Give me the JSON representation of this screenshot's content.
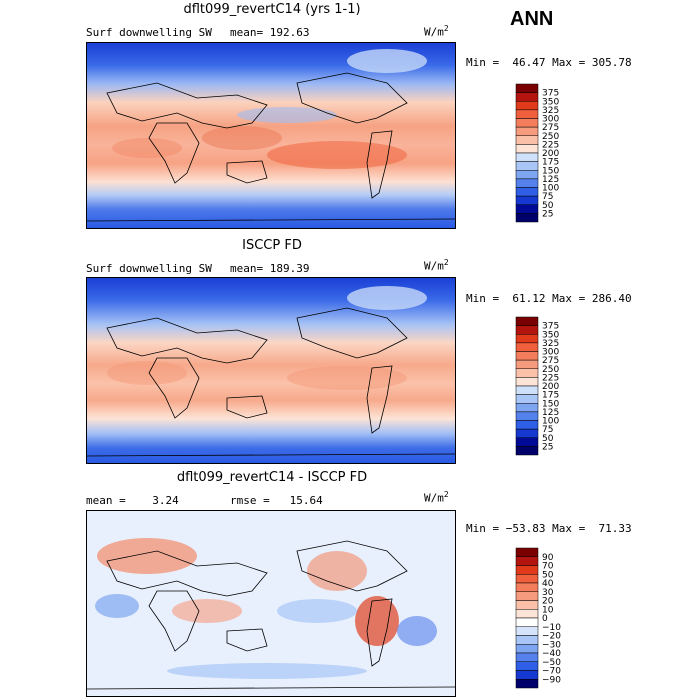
{
  "season": "ANN",
  "unit_base": "W/m",
  "unit_exp": "2",
  "panels": [
    {
      "title": "dflt099_revertC14 (yrs 1-1)",
      "left_label": "Surf downwelling SW",
      "mid_label": "mean= 192.63",
      "minmax": "Min =  46.47 Max = 305.78",
      "colorbar_levels": [
        "375",
        "350",
        "325",
        "300",
        "275",
        "250",
        "225",
        "200",
        "175",
        "150",
        "125",
        "100",
        "75",
        "50",
        "25"
      ]
    },
    {
      "title": "ISCCP FD",
      "left_label": "Surf downwelling SW",
      "mid_label": "mean= 189.39",
      "minmax": "Min =  61.12 Max = 286.40",
      "colorbar_levels": [
        "375",
        "350",
        "325",
        "300",
        "275",
        "250",
        "225",
        "200",
        "175",
        "150",
        "125",
        "100",
        "75",
        "50",
        "25"
      ]
    },
    {
      "title": "dflt099_revertC14 - ISCCP FD",
      "left_label": "mean =    3.24",
      "mid_label": "rmse =   15.64",
      "minmax": "Min = −53.83 Max =  71.33",
      "colorbar_levels": [
        "90",
        "70",
        "50",
        "40",
        "30",
        "20",
        "10",
        "0",
        "−10",
        "−20",
        "−30",
        "−40",
        "−50",
        "−70",
        "−90"
      ]
    }
  ],
  "colors": {
    "abs_scale": [
      "#7a0000",
      "#b4140e",
      "#e03a1a",
      "#f0603c",
      "#f47e5c",
      "#f79b7e",
      "#fbc1a8",
      "#fde4d6",
      "#cfe0fb",
      "#a9c6f6",
      "#7ea6f0",
      "#5581ec",
      "#2e5fe6",
      "#1438d0",
      "#000a96",
      "#00006a"
    ],
    "diff_scale": [
      "#7a0000",
      "#b4140e",
      "#e03a1a",
      "#f0603c",
      "#f47e5c",
      "#f79b7e",
      "#fbc1a8",
      "#fde4d6",
      "#ffffff",
      "#d6e4fb",
      "#a9c6f6",
      "#7ea6f0",
      "#5581ec",
      "#2e5fe6",
      "#1438d0",
      "#00006a"
    ]
  },
  "chart_data": [
    {
      "type": "heatmap",
      "title": "dflt099_revertC14 (yrs 1-1)",
      "variable": "Surf downwelling SW",
      "units": "W/m2",
      "mean": 192.63,
      "min": 46.47,
      "max": 305.78,
      "levels": [
        25,
        50,
        75,
        100,
        125,
        150,
        175,
        200,
        225,
        250,
        275,
        300,
        325,
        350,
        375
      ]
    },
    {
      "type": "heatmap",
      "title": "ISCCP FD",
      "variable": "Surf downwelling SW",
      "units": "W/m2",
      "mean": 189.39,
      "min": 61.12,
      "max": 286.4,
      "levels": [
        25,
        50,
        75,
        100,
        125,
        150,
        175,
        200,
        225,
        250,
        275,
        300,
        325,
        350,
        375
      ]
    },
    {
      "type": "heatmap",
      "title": "dflt099_revertC14 - ISCCP FD",
      "units": "W/m2",
      "mean": 3.24,
      "rmse": 15.64,
      "min": -53.83,
      "max": 71.33,
      "levels": [
        -90,
        -70,
        -50,
        -40,
        -30,
        -20,
        -10,
        0,
        10,
        20,
        30,
        40,
        50,
        70,
        90
      ]
    }
  ]
}
